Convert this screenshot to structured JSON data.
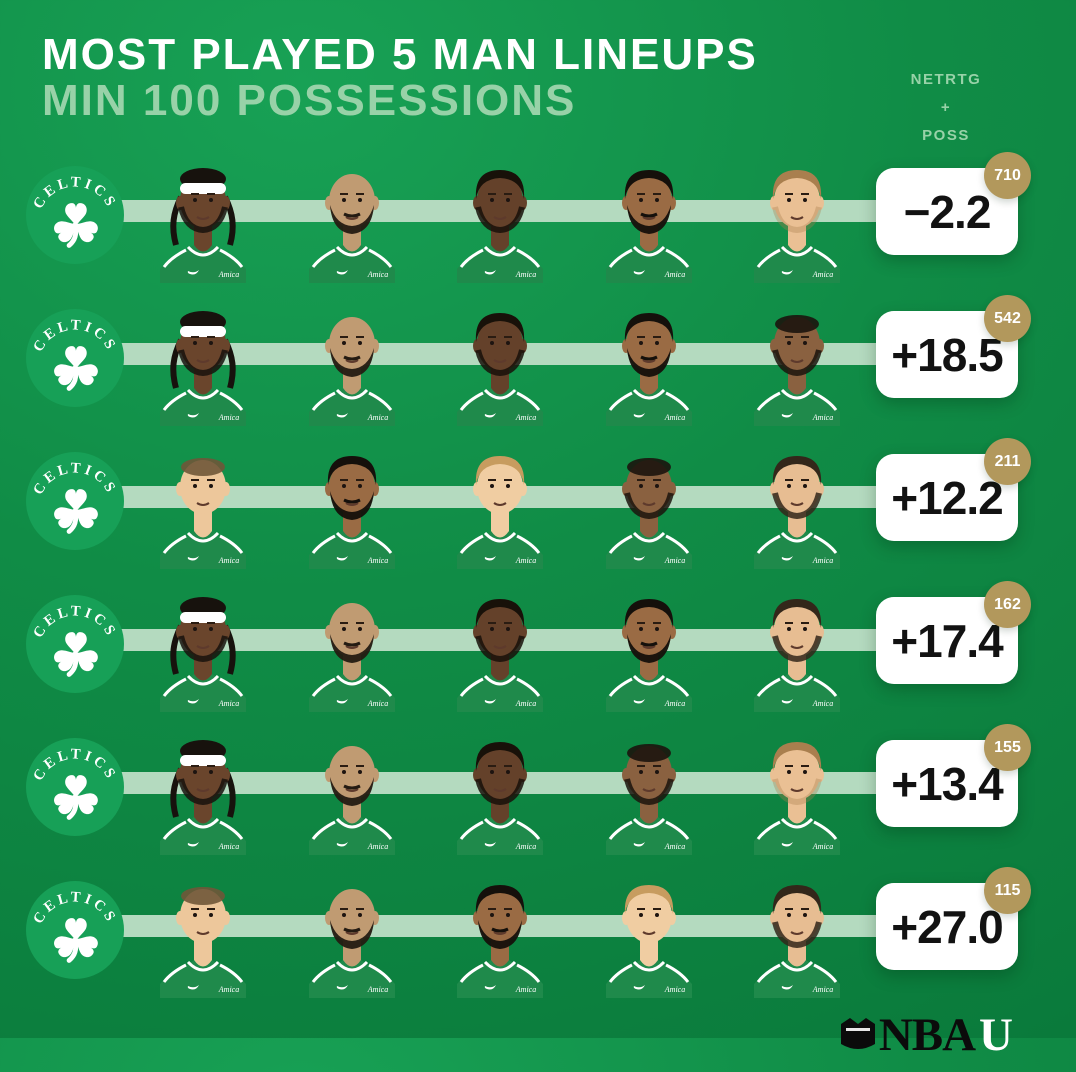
{
  "header": {
    "title": "MOST PLAYED 5 MAN LINEUPS",
    "subtitle": "MIN 100 POSSESSIONS",
    "legend": {
      "line1": "NETRTG",
      "line2": "+",
      "line3": "POSS"
    }
  },
  "team": {
    "name": "CELTICS"
  },
  "jersey_sponsor": "Amica",
  "colors": {
    "background": "#108c46",
    "stripe": "#b4dabf",
    "card_bg": "#ffffff",
    "card_text": "#121212",
    "badge_bg": "#b2985c",
    "badge_text": "#ffffff",
    "subtitle": "#98d2a8",
    "logo_circle": "#17a057"
  },
  "lineups": [
    {
      "players": [
        "Jrue Holiday",
        "Derrick White",
        "Jaylen Brown",
        "Jayson Tatum",
        "Kristaps Porzingis"
      ],
      "net_rating": "−2.2",
      "possessions": "710"
    },
    {
      "players": [
        "Jrue Holiday",
        "Derrick White",
        "Jaylen Brown",
        "Jayson Tatum",
        "Al Horford"
      ],
      "net_rating": "+18.5",
      "possessions": "542"
    },
    {
      "players": [
        "Payton Pritchard",
        "Jayson Tatum",
        "Sam Hauser",
        "Al Horford",
        "Luke Kornet"
      ],
      "net_rating": "+12.2",
      "possessions": "211"
    },
    {
      "players": [
        "Jrue Holiday",
        "Derrick White",
        "Jaylen Brown",
        "Jayson Tatum",
        "Luke Kornet"
      ],
      "net_rating": "+17.4",
      "possessions": "162"
    },
    {
      "players": [
        "Jrue Holiday",
        "Derrick White",
        "Jaylen Brown",
        "Al Horford",
        "Kristaps Porzingis"
      ],
      "net_rating": "+13.4",
      "possessions": "155"
    },
    {
      "players": [
        "Payton Pritchard",
        "Derrick White",
        "Jayson Tatum",
        "Sam Hauser",
        "Luke Kornet"
      ],
      "net_rating": "+27.0",
      "possessions": "115"
    }
  ],
  "watermark": {
    "black_text": "NBA",
    "white_text": "U"
  },
  "chart_data": {
    "type": "table",
    "title": "MOST PLAYED 5 MAN LINEUPS",
    "subtitle": "MIN 100 POSSESSIONS",
    "columns": [
      "lineup",
      "net_rating",
      "possessions"
    ],
    "rows": [
      {
        "lineup": [
          "Jrue Holiday",
          "Derrick White",
          "Jaylen Brown",
          "Jayson Tatum",
          "Kristaps Porzingis"
        ],
        "net_rating": -2.2,
        "possessions": 710
      },
      {
        "lineup": [
          "Jrue Holiday",
          "Derrick White",
          "Jaylen Brown",
          "Jayson Tatum",
          "Al Horford"
        ],
        "net_rating": 18.5,
        "possessions": 542
      },
      {
        "lineup": [
          "Payton Pritchard",
          "Jayson Tatum",
          "Sam Hauser",
          "Al Horford",
          "Luke Kornet"
        ],
        "net_rating": 12.2,
        "possessions": 211
      },
      {
        "lineup": [
          "Jrue Holiday",
          "Derrick White",
          "Jaylen Brown",
          "Jayson Tatum",
          "Luke Kornet"
        ],
        "net_rating": 17.4,
        "possessions": 162
      },
      {
        "lineup": [
          "Jrue Holiday",
          "Derrick White",
          "Jaylen Brown",
          "Al Horford",
          "Kristaps Porzingis"
        ],
        "net_rating": 13.4,
        "possessions": 155
      },
      {
        "lineup": [
          "Payton Pritchard",
          "Derrick White",
          "Jayson Tatum",
          "Sam Hauser",
          "Luke Kornet"
        ],
        "net_rating": 27.0,
        "possessions": 115
      }
    ]
  }
}
